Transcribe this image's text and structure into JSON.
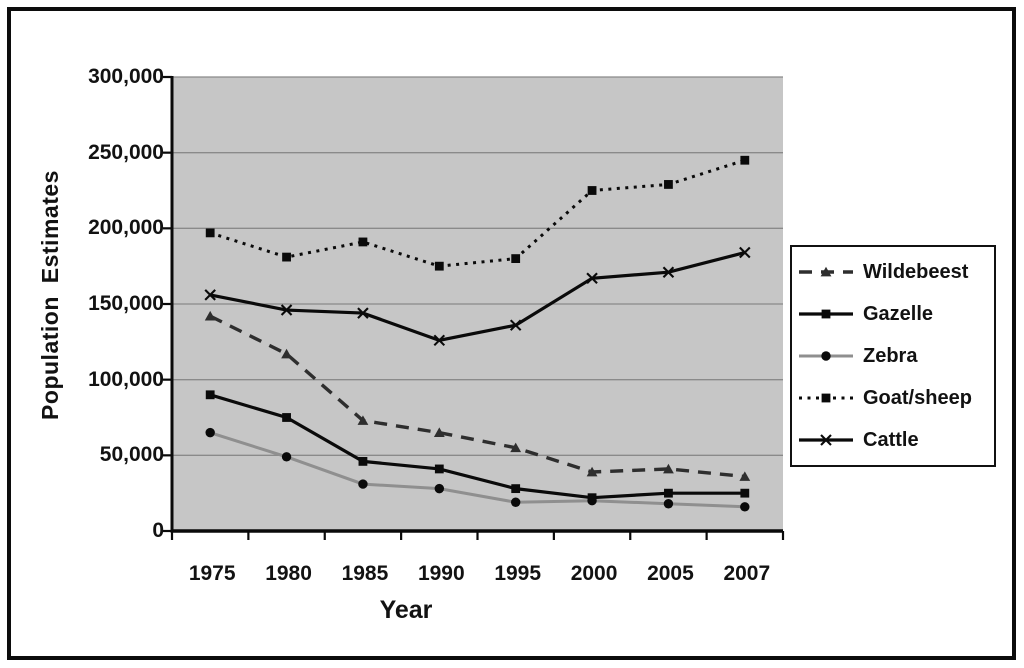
{
  "chart_data": {
    "type": "line",
    "title": "",
    "xlabel": "Year",
    "ylabel": "Population Estimates",
    "categories": [
      "1975",
      "1980",
      "1985",
      "1990",
      "1995",
      "2000",
      "2005",
      "2007"
    ],
    "series": [
      {
        "name": "Wildebeest",
        "values": [
          142000,
          117000,
          73000,
          65000,
          55000,
          39000,
          41000,
          36000
        ],
        "line": "dashed",
        "marker": "triangle",
        "color": "#2e2e2e"
      },
      {
        "name": "Gazelle",
        "values": [
          90000,
          75000,
          46000,
          41000,
          28000,
          22000,
          25000,
          25000
        ],
        "line": "solid",
        "marker": "square",
        "color": "#0a0a0a"
      },
      {
        "name": "Zebra",
        "values": [
          65000,
          49000,
          31000,
          28000,
          19000,
          20000,
          18000,
          16000
        ],
        "line": "solid",
        "marker": "circle",
        "color": "#0a0a0a",
        "line_color": "#8f8f8f"
      },
      {
        "name": "Goat/sheep",
        "values": [
          197000,
          181000,
          191000,
          175000,
          180000,
          225000,
          229000,
          245000
        ],
        "line": "dotted",
        "marker": "square",
        "color": "#0a0a0a"
      },
      {
        "name": "Cattle",
        "values": [
          156000,
          146000,
          144000,
          126000,
          136000,
          167000,
          171000,
          184000
        ],
        "line": "solid",
        "marker": "x",
        "color": "#0a0a0a"
      }
    ],
    "ylim": [
      0,
      300000
    ],
    "ytick_interval": 50000,
    "ytick_labels": [
      "0",
      "50,000",
      "100,000",
      "150,000",
      "200,000",
      "250,000",
      "300,000"
    ],
    "grid": "horizontal",
    "legend_position": "right",
    "plot_bg": "#c6c6c6",
    "grid_color": "#8a8a8a",
    "axis_color": "#0a0a0a"
  }
}
